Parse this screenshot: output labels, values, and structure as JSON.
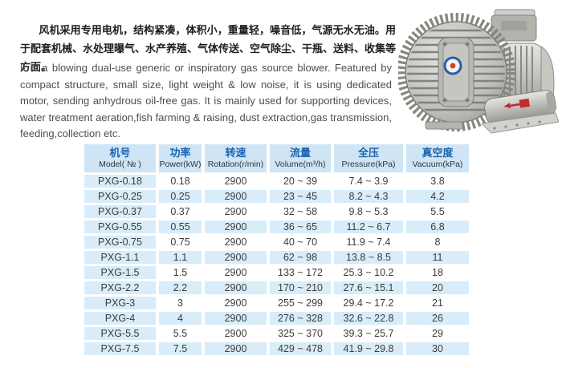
{
  "page": {
    "background": "#ffffff"
  },
  "intro": {
    "zh": "风机采用专用电机，结构紧凑，体积小，重量轻，噪音低，气源无水无油。用于配套机械、水处理曝气、水产养殖、气体传送、空气除尘、干瓶、送料、收集等方面。",
    "en": "It is a blowing dual-use generic or inspiratory gas source blower. Featured by compact structure,  small size, light weight & low noise,  it is using dedicated motor, sending anhydrous oil-free gas.  It is mainly used for supporting devices, water treatment aeration,fish farming & raising, dust extraction,gas transmission, feeding,collection etc."
  },
  "photo": {
    "label": "PXG vortex gas ring blower photo",
    "logo_ring_color": "#2a5caa",
    "logo_dot_color": "#d4402a",
    "red_label_color": "#c42b2b"
  },
  "table": {
    "columns": [
      {
        "zh": "机号",
        "en": "Model( № )"
      },
      {
        "zh": "功率",
        "en": "Power(kW)"
      },
      {
        "zh": "转速",
        "en": "Rotation(r/min)"
      },
      {
        "zh": "流量",
        "en": "Volume(m³/h)"
      },
      {
        "zh": "全压",
        "en": "Pressure(kPa)"
      },
      {
        "zh": "真空度",
        "en": "Vacuum(kPa)"
      }
    ],
    "rows": [
      [
        "PXG-0.18",
        "0.18",
        "2900",
        "20 ~ 39",
        "7.4 ~ 3.9",
        "3.8"
      ],
      [
        "PXG-0.25",
        "0.25",
        "2900",
        "23 ~ 45",
        "8.2 ~ 4.3",
        "4.2"
      ],
      [
        "PXG-0.37",
        "0.37",
        "2900",
        "32 ~ 58",
        "9.8 ~ 5.3",
        "5.5"
      ],
      [
        "PXG-0.55",
        "0.55",
        "2900",
        "36 ~ 65",
        "11.2 ~ 6.7",
        "6.8"
      ],
      [
        "PXG-0.75",
        "0.75",
        "2900",
        "40 ~ 70",
        "11.9 ~ 7.4",
        "8"
      ],
      [
        "PXG-1.1",
        "1.1",
        "2900",
        "62 ~ 98",
        "13.8 ~ 8.5",
        "11"
      ],
      [
        "PXG-1.5",
        "1.5",
        "2900",
        "133 ~ 172",
        "25.3 ~ 10.2",
        "18"
      ],
      [
        "PXG-2.2",
        "2.2",
        "2900",
        "170 ~ 210",
        "27.6 ~ 15.1",
        "20"
      ],
      [
        "PXG-3",
        "3",
        "2900",
        "255 ~ 299",
        "29.4 ~ 17.2",
        "21"
      ],
      [
        "PXG-4",
        "4",
        "2900",
        "276 ~ 328",
        "32.6 ~ 22.8",
        "26"
      ],
      [
        "PXG-5.5",
        "5.5",
        "2900",
        "325 ~ 370",
        "39.3 ~ 25.7",
        "29"
      ],
      [
        "PXG-7.5",
        "7.5",
        "2900",
        "429 ~ 478",
        "41.9 ~ 29.8",
        "30"
      ]
    ]
  },
  "colors": {
    "header_bg": "#cfe5f5",
    "header_text": "#1b63ae",
    "row_alt_bg": "#d9ecf9",
    "body_text": "#3c3c3c"
  }
}
